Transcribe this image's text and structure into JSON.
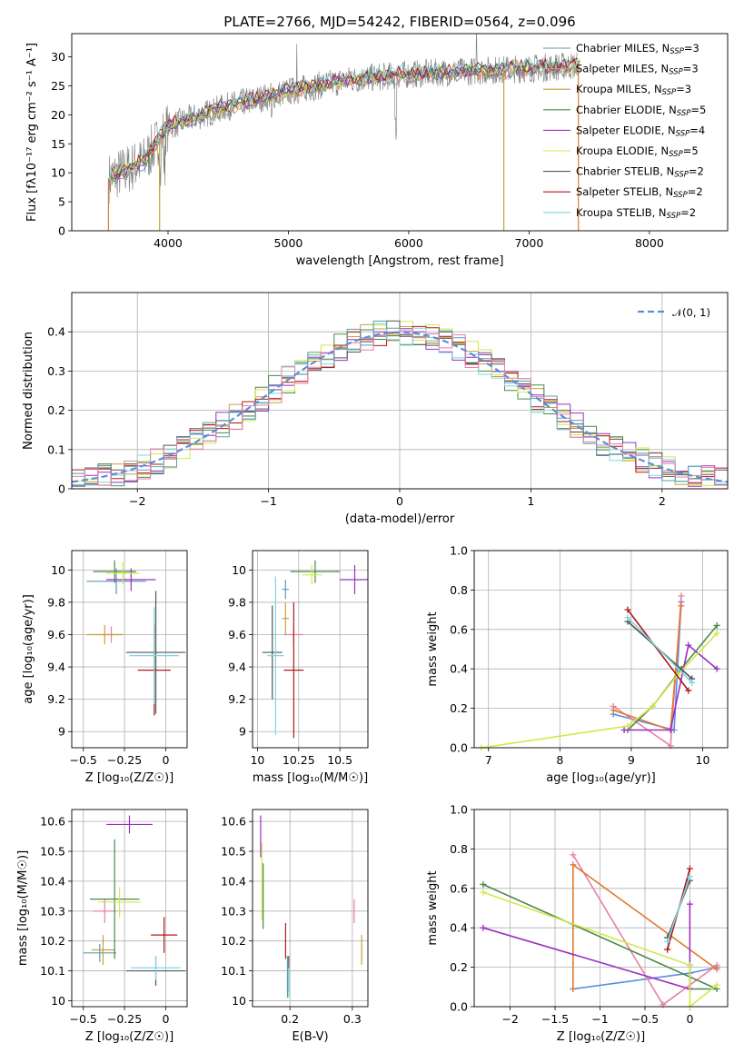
{
  "figure_title": "PLATE=2766, MJD=54242, FIBERID=0564, z=0.096",
  "series_colors": [
    "#5b9bb0",
    "#e87fa6",
    "#c9a13c",
    "#4a8a4a",
    "#9b30c0",
    "#d2e84a",
    "#555555",
    "#b01818",
    "#7fd6e0"
  ],
  "chart_data": [
    {
      "type": "line",
      "panel": "spectrum",
      "xlabel": "wavelength [Angstrom, rest frame]",
      "ylabel": "Flux [fλ10⁻¹⁷ erg cm⁻² s⁻¹ A⁻¹]",
      "xlim": [
        3200,
        8650
      ],
      "ylim": [
        0,
        34
      ],
      "xticks": [
        4000,
        5000,
        6000,
        7000,
        8000
      ],
      "yticks": [
        0,
        5,
        10,
        15,
        20,
        25,
        30
      ],
      "grid": false,
      "legend_position": "right",
      "legend": [
        {
          "label": "Chabrier MILES, N",
          "sub": "SSP",
          "tail": "=3"
        },
        {
          "label": "Salpeter MILES, N",
          "sub": "SSP",
          "tail": "=3"
        },
        {
          "label": "Kroupa MILES, N",
          "sub": "SSP",
          "tail": "=3"
        },
        {
          "label": "Chabrier ELODIE, N",
          "sub": "SSP",
          "tail": "=5"
        },
        {
          "label": "Salpeter ELODIE, N",
          "sub": "SSP",
          "tail": "=4"
        },
        {
          "label": "Kroupa ELODIE, N",
          "sub": "SSP",
          "tail": "=5"
        },
        {
          "label": "Chabrier STELIB, N",
          "sub": "SSP",
          "tail": "=2"
        },
        {
          "label": "Salpeter STELIB, N",
          "sub": "SSP",
          "tail": "=2"
        },
        {
          "label": "Kroupa STELIB, N",
          "sub": "SSP",
          "tail": "=2"
        }
      ],
      "spectrum_trend": {
        "x": [
          3500,
          3800,
          4000,
          4500,
          5000,
          5500,
          6000,
          6500,
          7000,
          7400
        ],
        "y": [
          9,
          12,
          18,
          21.5,
          24,
          26,
          27,
          27.5,
          28,
          28.5
        ]
      }
    },
    {
      "type": "histogram",
      "panel": "residuals",
      "xlabel": "(data-model)/error",
      "ylabel": "Normed distribution",
      "xlim": [
        -2.5,
        2.5
      ],
      "ylim": [
        0,
        0.5
      ],
      "xticks": [
        -2,
        -1,
        0,
        1,
        2
      ],
      "yticks": [
        0.0,
        0.1,
        0.2,
        0.3,
        0.4
      ],
      "grid": true,
      "legend_label": "𝒩(0, 1)",
      "legend_position": "top-right",
      "bin_width": 0.1
    },
    {
      "type": "errorbar",
      "panel": "age-vs-Z",
      "xlabel": "Z [log₁₀(Z/Z☉)]",
      "ylabel": "age  [log₁₀(age/yr)]",
      "xlim": [
        -0.57,
        0.13
      ],
      "ylim": [
        8.9,
        10.12
      ],
      "xticks": [
        -0.5,
        -0.25,
        0.0
      ],
      "yticks": [
        9.0,
        9.2,
        9.4,
        9.6,
        9.8,
        10.0
      ],
      "grid": true,
      "points": [
        {
          "x": -0.3,
          "y": 9.93,
          "xerr": 0.18,
          "yerr": 0.08
        },
        {
          "x": -0.33,
          "y": 9.6,
          "xerr": 0.07,
          "yerr": 0.05
        },
        {
          "x": -0.37,
          "y": 9.6,
          "xerr": 0.11,
          "yerr": 0.06
        },
        {
          "x": -0.31,
          "y": 9.99,
          "xerr": 0.13,
          "yerr": 0.07
        },
        {
          "x": -0.21,
          "y": 9.94,
          "xerr": 0.15,
          "yerr": 0.07
        },
        {
          "x": -0.26,
          "y": 9.98,
          "xerr": 0.1,
          "yerr": 0.07
        },
        {
          "x": -0.06,
          "y": 9.49,
          "xerr": 0.18,
          "yerr": 0.38
        },
        {
          "x": -0.07,
          "y": 9.38,
          "xerr": 0.1,
          "yerr": 0.28
        },
        {
          "x": -0.07,
          "y": 9.47,
          "xerr": 0.15,
          "yerr": 0.3
        }
      ]
    },
    {
      "type": "errorbar",
      "panel": "age-vs-mass",
      "xlabel": "mass [log₁₀(M/M☉)]",
      "ylabel": "",
      "xlim": [
        9.97,
        10.67
      ],
      "ylim": [
        8.9,
        10.12
      ],
      "xticks": [
        10.0,
        10.25,
        10.5
      ],
      "yticks": [
        9.0,
        9.2,
        9.4,
        9.6,
        9.8,
        10.0
      ],
      "grid": true,
      "points": [
        {
          "x": 10.17,
          "y": 9.88,
          "xerr": 0.02,
          "yerr": 0.06
        },
        {
          "x": 10.22,
          "y": 9.6,
          "xerr": 0.06,
          "yerr": 0.05
        },
        {
          "x": 10.17,
          "y": 9.7,
          "xerr": 0.02,
          "yerr": 0.1
        },
        {
          "x": 10.35,
          "y": 9.99,
          "xerr": 0.15,
          "yerr": 0.07
        },
        {
          "x": 10.59,
          "y": 9.94,
          "xerr": 0.09,
          "yerr": 0.09
        },
        {
          "x": 10.33,
          "y": 9.97,
          "xerr": 0.06,
          "yerr": 0.06
        },
        {
          "x": 10.09,
          "y": 9.49,
          "xerr": 0.06,
          "yerr": 0.29
        },
        {
          "x": 10.22,
          "y": 9.38,
          "xerr": 0.06,
          "yerr": 0.42
        },
        {
          "x": 10.11,
          "y": 9.47,
          "xerr": 0.05,
          "yerr": 0.49
        }
      ]
    },
    {
      "type": "line",
      "panel": "weight-vs-age",
      "xlabel": "age  [log₁₀(age/yr)]",
      "ylabel": "mass weight",
      "xlim": [
        6.8,
        10.35
      ],
      "ylim": [
        0,
        1.0
      ],
      "xticks": [
        7,
        8,
        9,
        10
      ],
      "yticks": [
        0.0,
        0.2,
        0.4,
        0.6,
        0.8,
        1.0
      ],
      "grid": true,
      "series": [
        {
          "x": [
            8.75,
            9.6,
            9.7
          ],
          "y": [
            0.17,
            0.09,
            0.74
          ]
        },
        {
          "x": [
            8.75,
            9.55,
            9.7
          ],
          "y": [
            0.21,
            0.01,
            0.77
          ]
        },
        {
          "x": [
            8.75,
            9.55,
            9.7
          ],
          "y": [
            0.19,
            0.09,
            0.72
          ]
        },
        {
          "x": [
            8.95,
            9.3,
            9.7,
            10.2
          ],
          "y": [
            0.09,
            0.21,
            0.4,
            0.62
          ]
        },
        {
          "x": [
            8.9,
            9.55,
            9.8,
            10.2
          ],
          "y": [
            0.09,
            0.09,
            0.52,
            0.4
          ]
        },
        {
          "x": [
            6.9,
            8.95,
            9.3,
            9.65,
            10.2
          ],
          "y": [
            0.0,
            0.11,
            0.21,
            0.37,
            0.58
          ]
        },
        {
          "x": [
            8.95,
            9.85
          ],
          "y": [
            0.64,
            0.35
          ]
        },
        {
          "x": [
            8.95,
            9.8
          ],
          "y": [
            0.7,
            0.29
          ]
        },
        {
          "x": [
            8.95,
            9.85
          ],
          "y": [
            0.66,
            0.33
          ]
        }
      ]
    },
    {
      "type": "errorbar",
      "panel": "mass-vs-Z",
      "xlabel": "Z [log₁₀(Z/Z☉)]",
      "ylabel": "mass [log₁₀(M/M☉)]",
      "xlim": [
        -0.57,
        0.13
      ],
      "ylim": [
        9.98,
        10.64
      ],
      "xticks": [
        -0.5,
        -0.25,
        0.0
      ],
      "yticks": [
        10.0,
        10.1,
        10.2,
        10.3,
        10.4,
        10.5,
        10.6
      ],
      "grid": true,
      "points": [
        {
          "x": -0.4,
          "y": 10.16,
          "xerr": 0.1,
          "yerr": 0.03
        },
        {
          "x": -0.37,
          "y": 10.3,
          "xerr": 0.07,
          "yerr": 0.04
        },
        {
          "x": -0.38,
          "y": 10.17,
          "xerr": 0.07,
          "yerr": 0.05
        },
        {
          "x": -0.31,
          "y": 10.34,
          "xerr": 0.15,
          "yerr": 0.2
        },
        {
          "x": -0.22,
          "y": 10.59,
          "xerr": 0.14,
          "yerr": 0.03
        },
        {
          "x": -0.28,
          "y": 10.33,
          "xerr": 0.13,
          "yerr": 0.05
        },
        {
          "x": -0.06,
          "y": 10.1,
          "xerr": 0.18,
          "yerr": 0.05
        },
        {
          "x": -0.01,
          "y": 10.22,
          "xerr": 0.08,
          "yerr": 0.06
        },
        {
          "x": -0.06,
          "y": 10.11,
          "xerr": 0.15,
          "yerr": 0.04
        }
      ]
    },
    {
      "type": "errorbar",
      "panel": "mass-vs-ebv",
      "xlabel": "E(B-V)",
      "ylabel": "",
      "xlim": [
        0.14,
        0.325
      ],
      "ylim": [
        9.98,
        10.64
      ],
      "xticks": [
        0.2,
        0.3
      ],
      "yticks": [
        10.0,
        10.1,
        10.2,
        10.3,
        10.4,
        10.5,
        10.6
      ],
      "grid": true,
      "points": [
        {
          "x": 0.196,
          "y": 10.08,
          "yerr": 0.07
        },
        {
          "x": 0.303,
          "y": 10.3,
          "yerr": 0.04
        },
        {
          "x": 0.315,
          "y": 10.17,
          "yerr": 0.05
        },
        {
          "x": 0.157,
          "y": 10.35,
          "yerr": 0.11
        },
        {
          "x": 0.153,
          "y": 10.55,
          "yerr": 0.07
        },
        {
          "x": 0.155,
          "y": 10.4,
          "yerr": 0.13
        },
        {
          "x": 0.198,
          "y": 10.09,
          "yerr": 0.06
        },
        {
          "x": 0.193,
          "y": 10.2,
          "yerr": 0.06
        },
        {
          "x": 0.198,
          "y": 10.06,
          "yerr": 0.05
        }
      ]
    },
    {
      "type": "line",
      "panel": "weight-vs-Z",
      "xlabel": "Z [log₁₀(Z/Z☉)]",
      "ylabel": "mass weight",
      "xlim": [
        -2.4,
        0.42
      ],
      "ylim": [
        0,
        1.0
      ],
      "xticks": [
        -2.0,
        -1.5,
        -1.0,
        -0.5,
        0.0
      ],
      "yticks": [
        0.0,
        0.2,
        0.4,
        0.6,
        0.8,
        1.0
      ],
      "grid": true,
      "series": [
        {
          "x": [
            -1.3,
            0.0,
            0.3
          ],
          "y": [
            0.09,
            0.17,
            0.2
          ]
        },
        {
          "x": [
            -1.3,
            -0.3,
            0.3
          ],
          "y": [
            0.77,
            0.01,
            0.21
          ]
        },
        {
          "x": [
            -1.3,
            -1.3,
            0.3
          ],
          "y": [
            0.09,
            0.72,
            0.19
          ]
        },
        {
          "x": [
            -2.3,
            0.3,
            0.0,
            0.0
          ],
          "y": [
            0.62,
            0.09,
            0.09,
            0.21
          ]
        },
        {
          "x": [
            -2.3,
            0.0,
            0.0
          ],
          "y": [
            0.4,
            0.09,
            0.52
          ]
        },
        {
          "x": [
            -2.3,
            0.0,
            0.0,
            0.3
          ],
          "y": [
            0.58,
            0.21,
            0.0,
            0.11
          ]
        },
        {
          "x": [
            -0.25,
            0.0
          ],
          "y": [
            0.35,
            0.64
          ]
        },
        {
          "x": [
            -0.25,
            0.0
          ],
          "y": [
            0.29,
            0.7
          ]
        },
        {
          "x": [
            -0.25,
            0.0
          ],
          "y": [
            0.33,
            0.66
          ]
        }
      ]
    }
  ]
}
